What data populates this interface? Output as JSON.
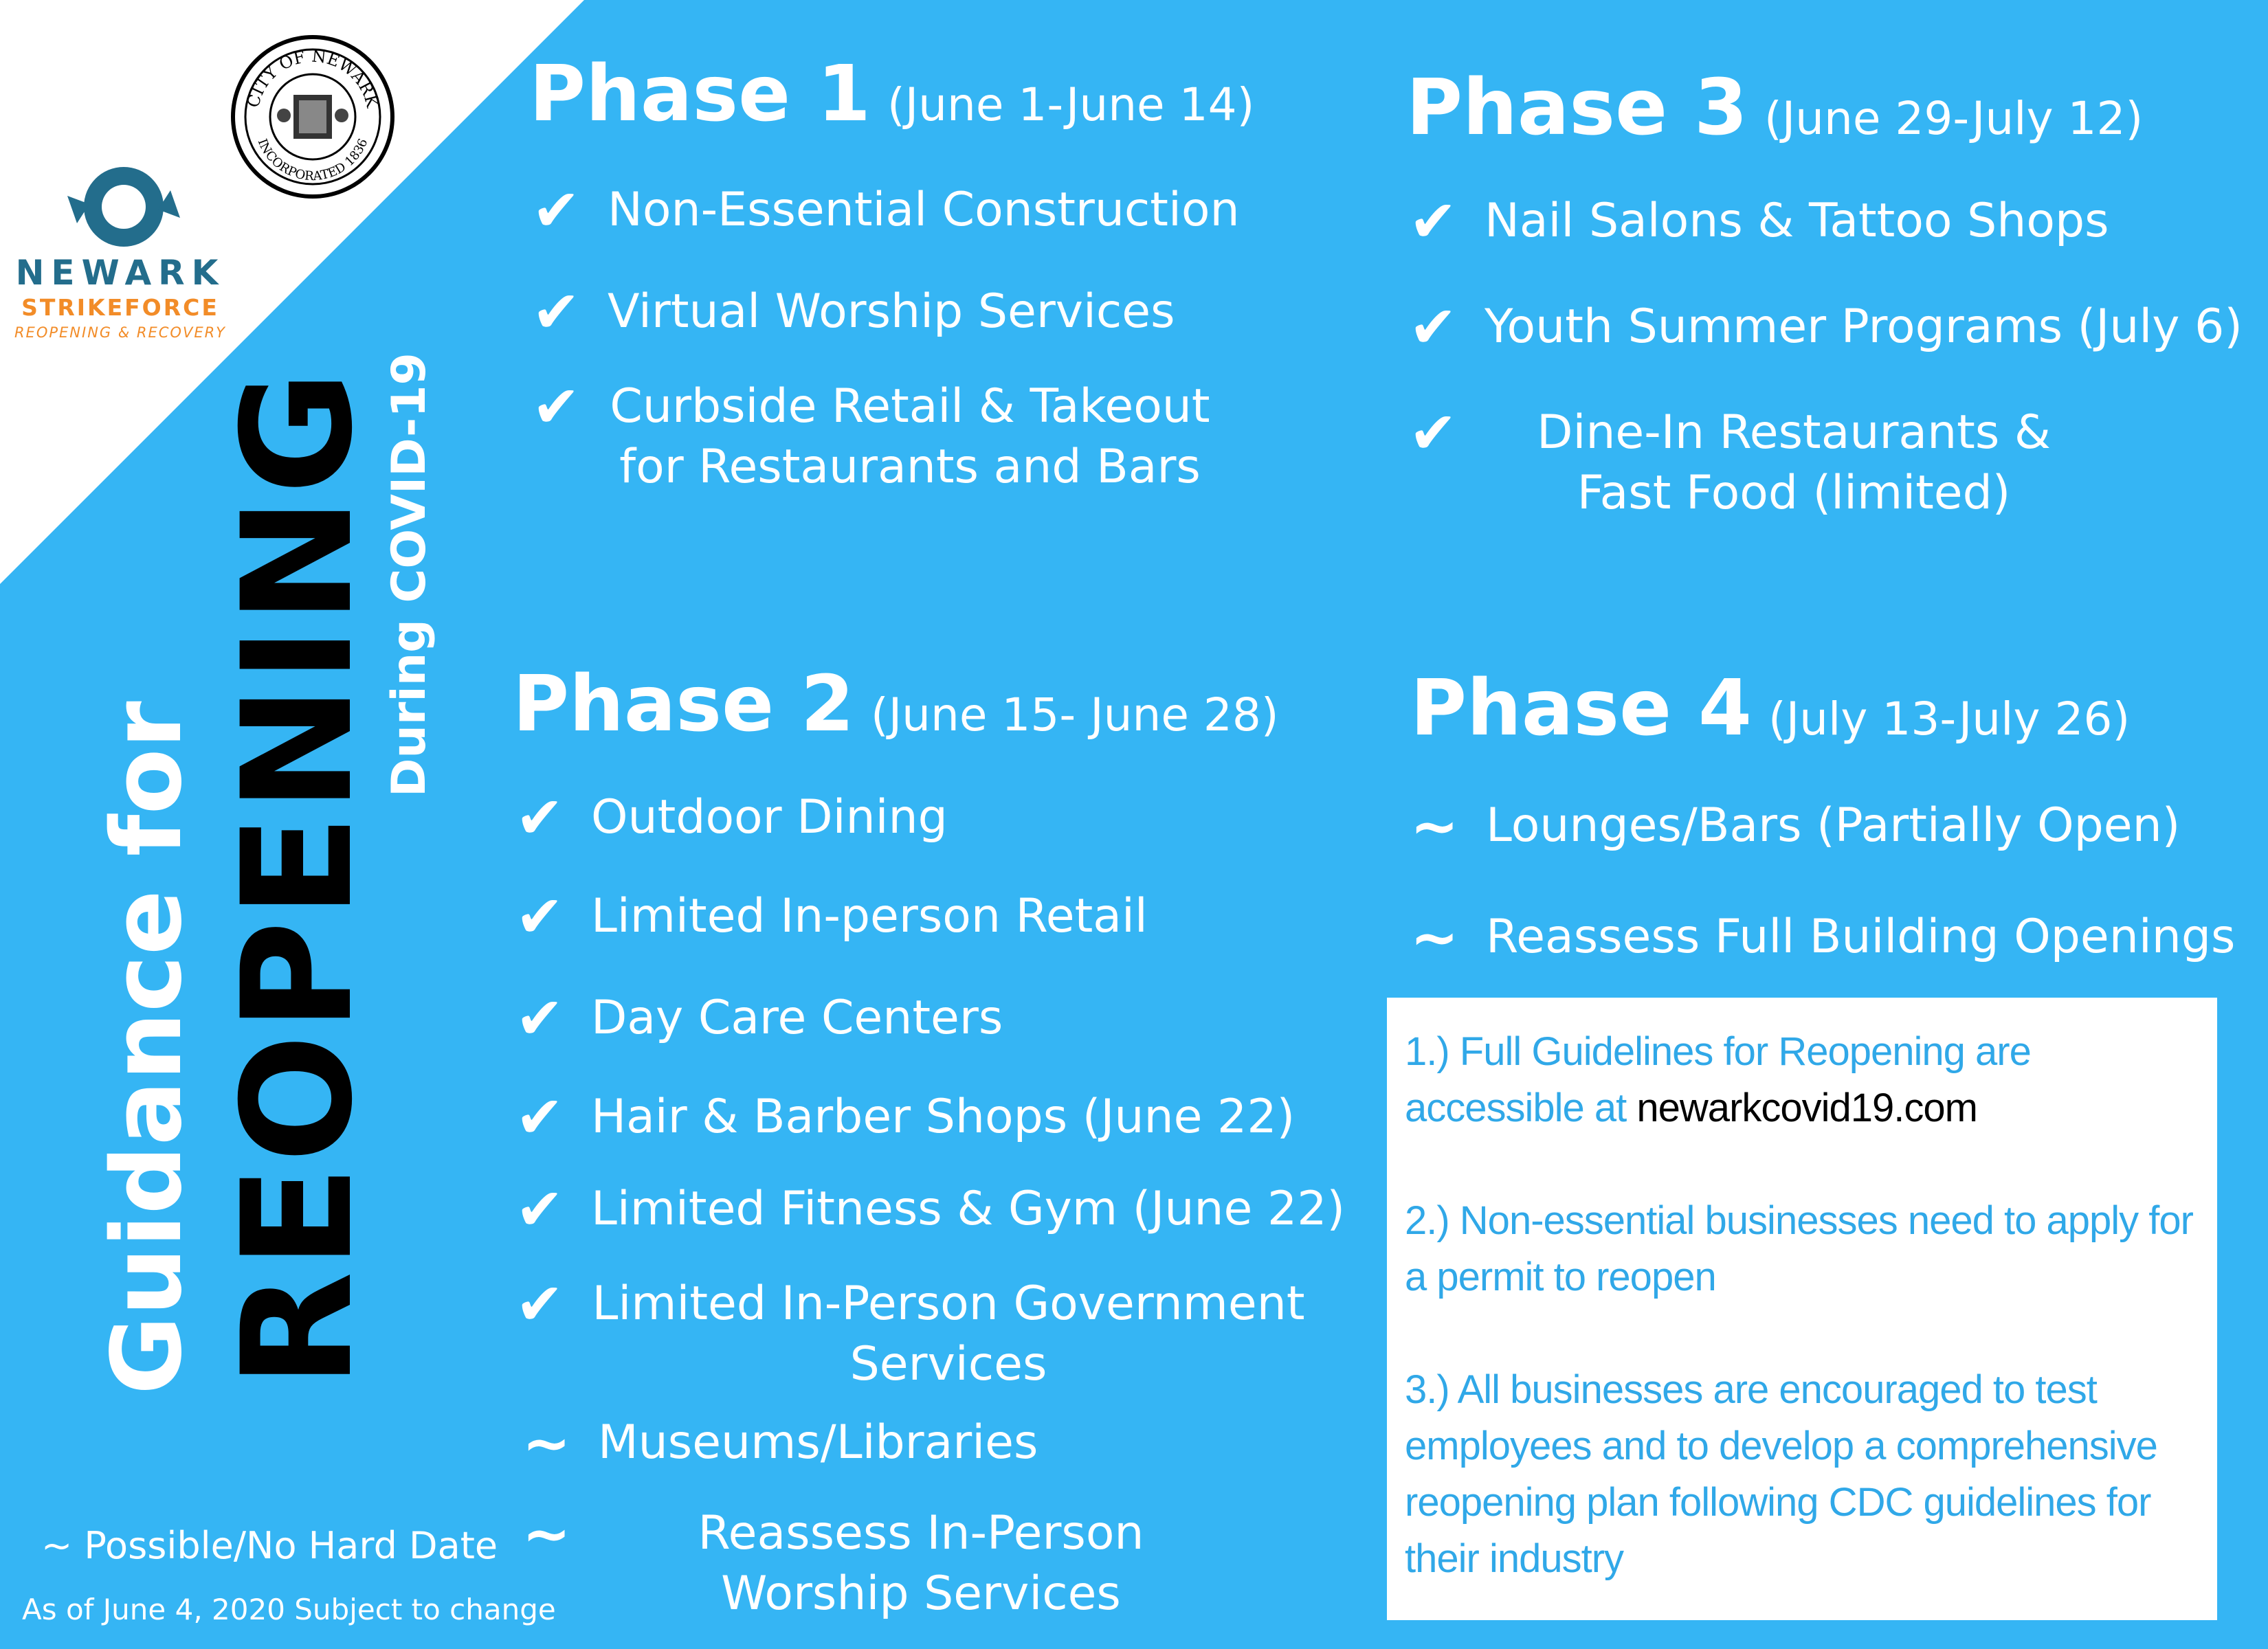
{
  "logos": {
    "seal_text_top": "CITY OF NEWARK",
    "seal_text_bottom": "INCORPORATED 1836",
    "strikeforce_line1": "NEWARK",
    "strikeforce_line2": "STRIKEFORCE",
    "strikeforce_line3": "REOPENING & RECOVERY"
  },
  "title": {
    "line1": "Guidance for",
    "line2": "REOPENING",
    "line3": "During COVID-19"
  },
  "phases": [
    {
      "name": "Phase 1",
      "dates": "(June 1-June 14)",
      "items": [
        {
          "mark": "✔",
          "text": "Non-Essential Construction"
        },
        {
          "mark": "✔",
          "text": "Virtual Worship Services"
        },
        {
          "mark": "✔",
          "text": "Curbside Retail & Takeout for Restaurants and Bars"
        }
      ]
    },
    {
      "name": "Phase 2",
      "dates": "(June 15- June 28)",
      "items": [
        {
          "mark": "✔",
          "text": "Outdoor Dining"
        },
        {
          "mark": "✔",
          "text": "Limited In-person Retail"
        },
        {
          "mark": "✔",
          "text": "Day Care Centers"
        },
        {
          "mark": "✔",
          "text": "Hair & Barber Shops (June 22)"
        },
        {
          "mark": "✔",
          "text": "Limited Fitness & Gym (June 22)"
        },
        {
          "mark": "✔",
          "text": "Limited In-Person Government Services"
        },
        {
          "mark": "~",
          "text": "Museums/Libraries"
        },
        {
          "mark": "~",
          "text": "Reassess In-Person Worship Services"
        }
      ]
    },
    {
      "name": "Phase 3",
      "dates": "(June 29-July 12)",
      "items": [
        {
          "mark": "✔",
          "text": "Nail Salons & Tattoo Shops"
        },
        {
          "mark": "✔",
          "text": "Youth Summer Programs (July 6)"
        },
        {
          "mark": "✔",
          "text": "Dine-In Restaurants & Fast Food (limited)"
        }
      ]
    },
    {
      "name": "Phase 4",
      "dates": "(July 13-July 26)",
      "items": [
        {
          "mark": "~",
          "text": "Lounges/Bars (Partially Open)"
        },
        {
          "mark": "~",
          "text": "Reassess Full Building Openings"
        }
      ]
    }
  ],
  "notes": [
    {
      "text": "1.) Full Guidelines for Reopening are accessible at ",
      "link": "newarkcovid19.com"
    },
    {
      "text": "2.) Non-essential businesses need to apply for a permit to reopen"
    },
    {
      "text": "3.) All businesses are encouraged to test employees and to develop a comprehensive reopening plan following CDC guidelines for their industry"
    }
  ],
  "legend": "~ Possible/No Hard Date",
  "as_of": "As of June 4, 2020 Subject to change",
  "colors": {
    "background": "#35b5f4",
    "corner": "#ffffff",
    "note_text": "#30a8e8",
    "logo_blue": "#236d8c",
    "logo_orange": "#f28c28"
  }
}
